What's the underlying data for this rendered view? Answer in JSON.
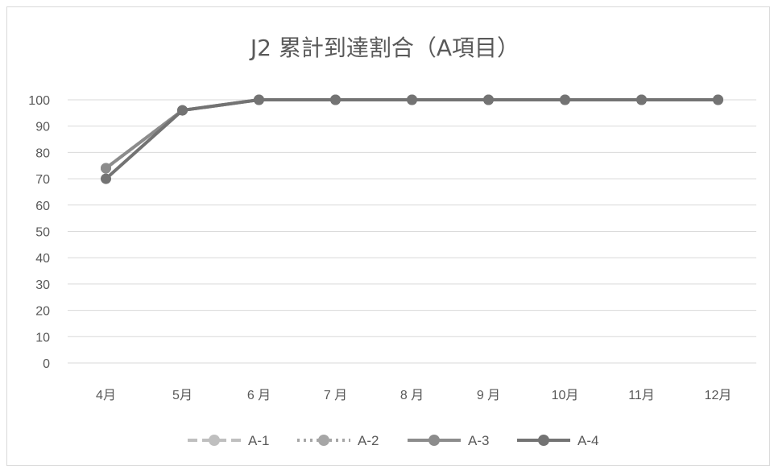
{
  "chart_data": {
    "type": "line",
    "title": "J2 累計到達割合（A項目）",
    "categories": [
      "4月",
      "5月",
      "6 月",
      "7 月",
      "8 月",
      "9 月",
      "10月",
      "11月",
      "12月"
    ],
    "ylim": [
      0,
      100
    ],
    "yticks": [
      0,
      10,
      20,
      30,
      40,
      50,
      60,
      70,
      80,
      90,
      100
    ],
    "grid": true,
    "legend_position": "bottom",
    "series": [
      {
        "name": "A-1",
        "values": [
          74,
          96,
          100,
          100,
          100,
          100,
          100,
          100,
          100
        ],
        "color": "#bfbfbf",
        "dash": "dash"
      },
      {
        "name": "A-2",
        "values": [
          74,
          96,
          100,
          100,
          100,
          100,
          100,
          100,
          100
        ],
        "color": "#a6a6a6",
        "dash": "dot"
      },
      {
        "name": "A-3",
        "values": [
          74,
          96,
          100,
          100,
          100,
          100,
          100,
          100,
          100
        ],
        "color": "#8c8c8c",
        "dash": "solid"
      },
      {
        "name": "A-4",
        "values": [
          70,
          96,
          100,
          100,
          100,
          100,
          100,
          100,
          100
        ],
        "color": "#737373",
        "dash": "solid"
      }
    ]
  }
}
